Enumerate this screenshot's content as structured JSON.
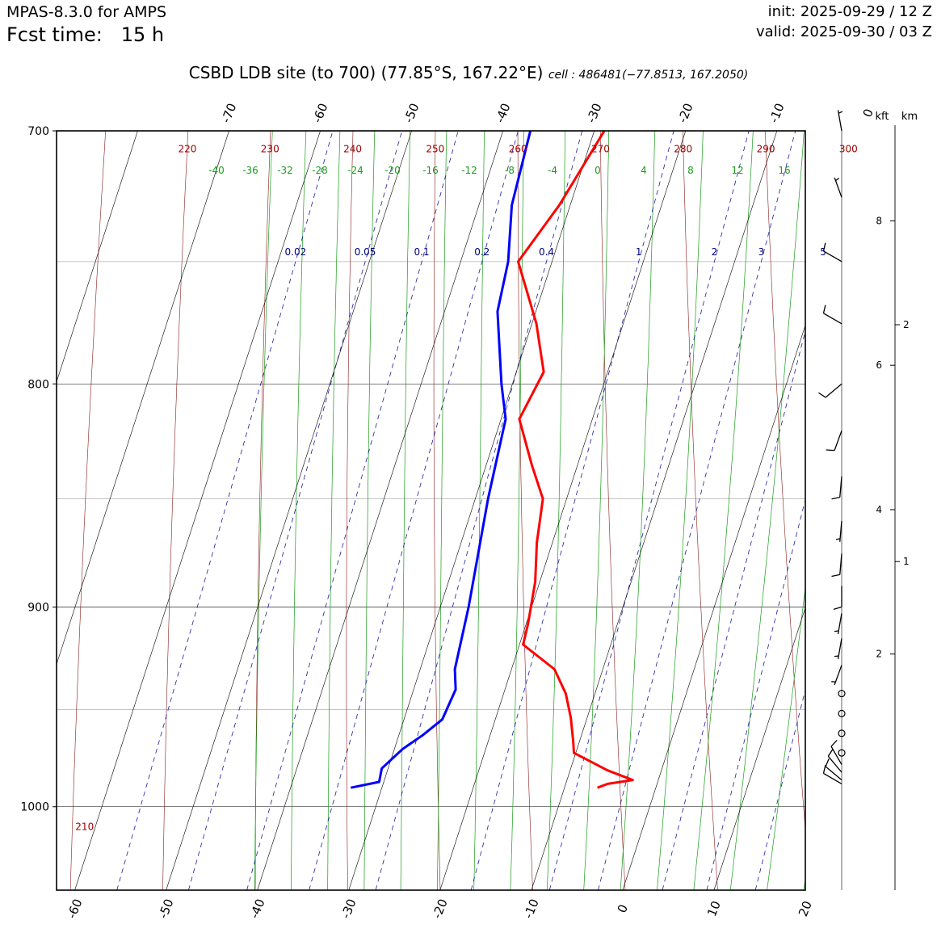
{
  "header": {
    "model": "MPAS-8.3.0 for AMPS",
    "fcst_label": "Fcst time:",
    "fcst_value": "15 h",
    "init": "init: 2025-09-29 / 12 Z",
    "valid": "valid: 2025-09-30 / 03 Z",
    "site": "CSBD LDB site (to 700)  (77.85°S, 167.22°E)",
    "cell": "cell : 486481(−77.8513, 167.2050)"
  },
  "chart_data": {
    "type": "line",
    "chart_kind": "skew-T log-p diagram",
    "y_axis": {
      "scale": "log",
      "range": [
        1045,
        700
      ],
      "ticks": [
        "700",
        "800",
        "900",
        "1000"
      ]
    },
    "x_axis": {
      "range": [
        -62,
        20
      ],
      "ticks": [
        "-60",
        "-50",
        "-40",
        "-30",
        "-20",
        "-10",
        "0",
        "10",
        "20"
      ]
    },
    "top_isotherm_labels": [
      "-70",
      "-60",
      "-50",
      "-40",
      "-30",
      "-20",
      "-10",
      "0"
    ],
    "isotherm_values": [
      -100,
      -90,
      -80,
      -70,
      -60,
      -50,
      -40,
      -30,
      -20,
      -10,
      0,
      10,
      20
    ],
    "dry_adiabat_labels": [
      {
        "theta": 220,
        "label": "220"
      },
      {
        "theta": 230,
        "label": "230"
      },
      {
        "theta": 240,
        "label": "240"
      },
      {
        "theta": 250,
        "label": "250"
      },
      {
        "theta": 260,
        "label": "260"
      },
      {
        "theta": 270,
        "label": "270"
      },
      {
        "theta": 280,
        "label": "280"
      },
      {
        "theta": 290,
        "label": "290"
      },
      {
        "theta": 300,
        "label": "300"
      },
      {
        "theta": 210,
        "label": "210"
      }
    ],
    "moist_adiabat_labels": [
      "-40",
      "-36",
      "-32",
      "-28",
      "-24",
      "-20",
      "-16",
      "-12",
      "-8",
      "-4",
      "0",
      "4",
      "8",
      "12",
      "16"
    ],
    "mixing_ratio_labels": [
      {
        "w": 0.02,
        "label": "0.02"
      },
      {
        "w": 0.05,
        "label": "0.05"
      },
      {
        "w": 0.1,
        "label": "0.1"
      },
      {
        "w": 0.2,
        "label": "0.2"
      },
      {
        "w": 0.4,
        "label": "0.4"
      },
      {
        "w": 1,
        "label": "1"
      },
      {
        "w": 2,
        "label": "2"
      },
      {
        "w": 3,
        "label": "3"
      },
      {
        "w": 5,
        "label": "5"
      }
    ],
    "temperature": {
      "color": "#ff0000",
      "points": [
        [
          700,
          -28.9
        ],
        [
          728,
          -31.2
        ],
        [
          750,
          -33.7
        ],
        [
          775,
          -29.5
        ],
        [
          795,
          -27.0
        ],
        [
          815,
          -28.0
        ],
        [
          835,
          -25.0
        ],
        [
          850,
          -22.6
        ],
        [
          870,
          -21.7
        ],
        [
          888,
          -20.5
        ],
        [
          908,
          -19.8
        ],
        [
          918,
          -19.6
        ],
        [
          930,
          -15.3
        ],
        [
          942,
          -13.2
        ],
        [
          954,
          -11.8
        ],
        [
          966,
          -10.7
        ],
        [
          972,
          -10.2
        ],
        [
          981,
          -5.9
        ],
        [
          986,
          -2.8
        ],
        [
          988,
          -5.4
        ],
        [
          990,
          -6.4
        ]
      ]
    },
    "dewpoint": {
      "color": "#0000ff",
      "points": [
        [
          700,
          -37.0
        ],
        [
          728,
          -36.4
        ],
        [
          750,
          -34.8
        ],
        [
          770,
          -34.2
        ],
        [
          800,
          -31.2
        ],
        [
          815,
          -29.5
        ],
        [
          850,
          -28.6
        ],
        [
          900,
          -26.9
        ],
        [
          930,
          -26.2
        ],
        [
          940,
          -25.4
        ],
        [
          955,
          -25.8
        ],
        [
          963,
          -27.4
        ],
        [
          970,
          -29.1
        ],
        [
          980,
          -30.7
        ],
        [
          987,
          -30.5
        ],
        [
          990,
          -33.4
        ]
      ]
    },
    "km_axis": {
      "labels": [
        "2",
        "1"
      ],
      "heights_m": [
        2000,
        1000
      ]
    },
    "kft_axis": {
      "labels": [
        "8",
        "6",
        "4",
        "2"
      ],
      "heights_kft": [
        8,
        6,
        4,
        2
      ]
    },
    "height_axis_titles": {
      "kft": "kft",
      "km": "km"
    },
    "wind_profile": [
      {
        "p": 700,
        "dir": 350,
        "spd": 5
      },
      {
        "p": 725,
        "dir": 340,
        "spd": 5
      },
      {
        "p": 750,
        "dir": 300,
        "spd": 10
      },
      {
        "p": 775,
        "dir": 300,
        "spd": 10
      },
      {
        "p": 800,
        "dir": 230,
        "spd": 10
      },
      {
        "p": 820,
        "dir": 200,
        "spd": 10
      },
      {
        "p": 840,
        "dir": 185,
        "spd": 10
      },
      {
        "p": 860,
        "dir": 185,
        "spd": 5
      },
      {
        "p": 875,
        "dir": 185,
        "spd": 10
      },
      {
        "p": 890,
        "dir": 180,
        "spd": 10
      },
      {
        "p": 903,
        "dir": 190,
        "spd": 5
      },
      {
        "p": 915,
        "dir": 190,
        "spd": 5
      },
      {
        "p": 928,
        "dir": 200,
        "spd": 5
      },
      {
        "p": 942,
        "dir": 0,
        "spd": 0
      },
      {
        "p": 952,
        "dir": 0,
        "spd": 0
      },
      {
        "p": 962,
        "dir": 0,
        "spd": 0
      },
      {
        "p": 972,
        "dir": 0,
        "spd": 0
      },
      {
        "p": 978,
        "dir": 330,
        "spd": 10
      },
      {
        "p": 982,
        "dir": 320,
        "spd": 10
      },
      {
        "p": 986,
        "dir": 310,
        "spd": 10
      },
      {
        "p": 988,
        "dir": 300,
        "spd": 10
      }
    ]
  }
}
